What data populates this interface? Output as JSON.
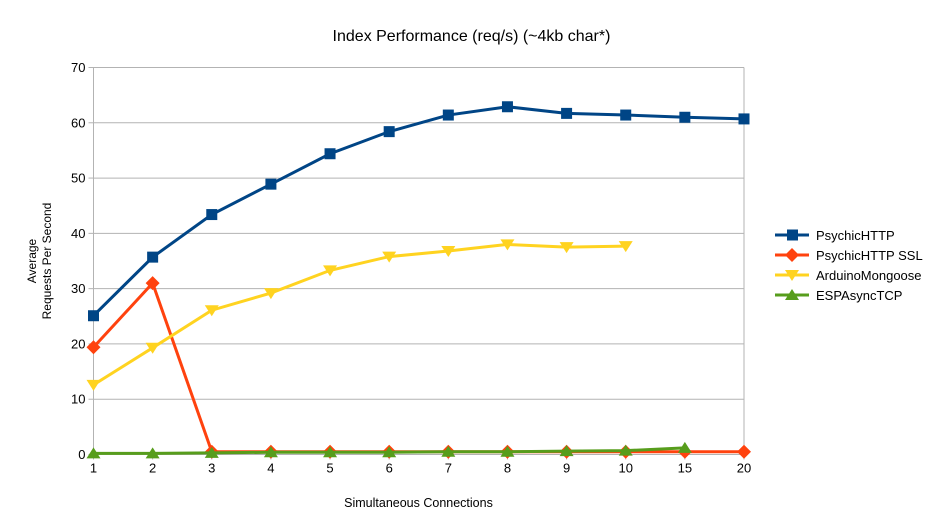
{
  "chart_data": {
    "type": "line",
    "title": "Index Performance (req/s) (~4kb char*)",
    "xlabel": "Simultaneous Connections",
    "ylabel_lines": [
      "Average",
      "Requests Per Second"
    ],
    "categories": [
      "1",
      "2",
      "3",
      "4",
      "5",
      "6",
      "7",
      "8",
      "9",
      "10",
      "15",
      "20"
    ],
    "ylim": [
      0,
      70
    ],
    "ytick_step": 10,
    "grid": "horizontal",
    "legend_position": "right",
    "grid_color": "#b3b3b3",
    "axis_color": "#b3b3b3",
    "text_color": "#000000",
    "background_color": "#ffffff",
    "series": [
      {
        "name": "PsychicHTTP",
        "color": "#004586",
        "marker": "square",
        "values": [
          25.1,
          35.7,
          43.4,
          48.9,
          54.4,
          58.4,
          61.4,
          62.9,
          61.7,
          61.4,
          61.0,
          60.7
        ]
      },
      {
        "name": "PsychicHTTP SSL",
        "color": "#ff420e",
        "marker": "diamond",
        "values": [
          19.4,
          31.0,
          0.5,
          0.5,
          0.5,
          0.5,
          0.5,
          0.5,
          0.5,
          0.5,
          0.5,
          0.5
        ]
      },
      {
        "name": "ArduinoMongoose",
        "color": "#ffd320",
        "marker": "triangle-down",
        "values": [
          12.6,
          19.3,
          26.1,
          29.2,
          33.3,
          35.8,
          36.8,
          38.0,
          37.5,
          37.7,
          null,
          null
        ]
      },
      {
        "name": "ESPAsyncTCP",
        "color": "#579d1c",
        "marker": "triangle-up",
        "values": [
          0.2,
          0.2,
          0.3,
          0.4,
          0.4,
          0.4,
          0.5,
          0.5,
          0.6,
          0.7,
          1.2,
          null
        ]
      }
    ]
  }
}
